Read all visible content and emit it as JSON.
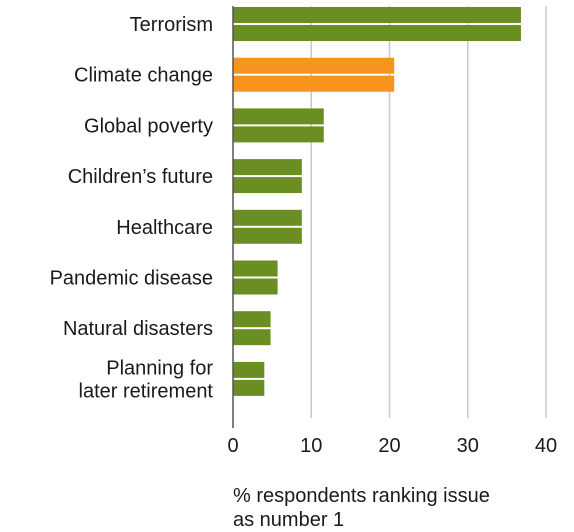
{
  "chart_data": {
    "type": "bar",
    "orientation": "horizontal",
    "categories": [
      "Terrorism",
      "Climate change",
      "Global poverty",
      "Children’s future",
      "Healthcare",
      "Pandemic disease",
      "Natural disasters",
      "Planning for later retirement"
    ],
    "category_lines": [
      [
        "Terrorism"
      ],
      [
        "Climate change"
      ],
      [
        "Global poverty"
      ],
      [
        "Children’s future"
      ],
      [
        "Healthcare"
      ],
      [
        "Pandemic disease"
      ],
      [
        "Natural disasters"
      ],
      [
        "Planning for",
        "later retirement"
      ]
    ],
    "series": [
      {
        "values": [
          36.8,
          20.6,
          11.6,
          8.8,
          8.8,
          5.7,
          4.8,
          4.0
        ]
      },
      {
        "values": [
          36.8,
          20.6,
          11.6,
          8.8,
          8.8,
          5.7,
          4.8,
          4.0
        ]
      }
    ],
    "highlight_category": "Climate change",
    "xlabel_lines": [
      "% respondents ranking issue",
      "as number 1"
    ],
    "xlim": [
      0,
      40
    ],
    "xticks": [
      0,
      10,
      20,
      30,
      40
    ],
    "grid": true,
    "colors": {
      "bar": "#6b8e23",
      "highlight": "#f7941d",
      "grid": "#c8c8c8",
      "axis": "#555555",
      "text": "#1a1a1a"
    }
  }
}
